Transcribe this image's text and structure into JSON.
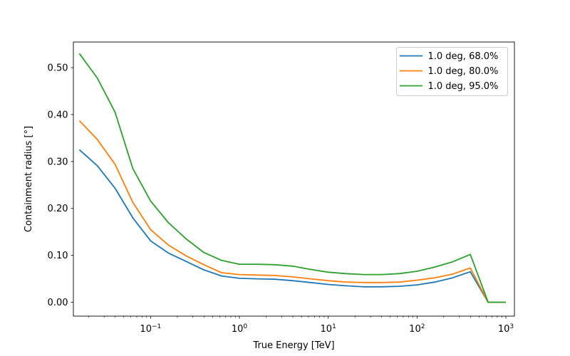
{
  "figure": {
    "background": "#ffffff",
    "frame_color": "#000000"
  },
  "chart_data": {
    "type": "line",
    "title": "",
    "xlabel": "True Energy [TeV]",
    "ylabel": "Containment radius [°]",
    "x_scale": "log",
    "y_scale": "linear",
    "grid": false,
    "legend_position": "upper right",
    "xlim": [
      0.0135,
      1250
    ],
    "ylim": [
      -0.03,
      0.555
    ],
    "x_major_ticks": [
      0.1,
      1,
      10,
      100,
      1000
    ],
    "x_tick_labels": [
      {
        "base": "10",
        "exp": "−1"
      },
      {
        "base": "10",
        "exp": "0"
      },
      {
        "base": "10",
        "exp": "1"
      },
      {
        "base": "10",
        "exp": "2"
      },
      {
        "base": "10",
        "exp": "3"
      }
    ],
    "y_ticks": [
      0.0,
      0.1,
      0.2,
      0.3,
      0.4,
      0.5
    ],
    "y_tick_labels": [
      "0.00",
      "0.10",
      "0.20",
      "0.30",
      "0.40",
      "0.50"
    ],
    "x": [
      0.0158,
      0.0251,
      0.0398,
      0.0631,
      0.1,
      0.158,
      0.251,
      0.398,
      0.631,
      1.0,
      1.58,
      2.51,
      3.98,
      6.31,
      10.0,
      15.8,
      25.1,
      39.8,
      63.1,
      100,
      158,
      251,
      398,
      631,
      1000
    ],
    "series": [
      {
        "name": "1.0 deg, 68.0%",
        "color": "#1f77b4",
        "values": [
          0.325,
          0.291,
          0.243,
          0.18,
          0.131,
          0.105,
          0.087,
          0.069,
          0.056,
          0.051,
          0.05,
          0.049,
          0.046,
          0.042,
          0.038,
          0.035,
          0.033,
          0.033,
          0.034,
          0.037,
          0.043,
          0.052,
          0.065,
          0.0,
          0.0
        ]
      },
      {
        "name": "1.0 deg, 80.0%",
        "color": "#ff7f0e",
        "values": [
          0.387,
          0.347,
          0.294,
          0.213,
          0.155,
          0.122,
          0.099,
          0.08,
          0.063,
          0.059,
          0.058,
          0.057,
          0.054,
          0.05,
          0.046,
          0.043,
          0.042,
          0.042,
          0.043,
          0.047,
          0.052,
          0.06,
          0.073,
          0.0,
          0.0
        ]
      },
      {
        "name": "1.0 deg, 95.0%",
        "color": "#2ca02c",
        "values": [
          0.53,
          0.478,
          0.405,
          0.285,
          0.216,
          0.17,
          0.135,
          0.106,
          0.089,
          0.081,
          0.081,
          0.08,
          0.077,
          0.07,
          0.064,
          0.061,
          0.059,
          0.059,
          0.061,
          0.066,
          0.075,
          0.086,
          0.102,
          0.0,
          0.0
        ]
      }
    ],
    "legend_border_color": "#cccccc",
    "legend_background": "#ffffff"
  }
}
